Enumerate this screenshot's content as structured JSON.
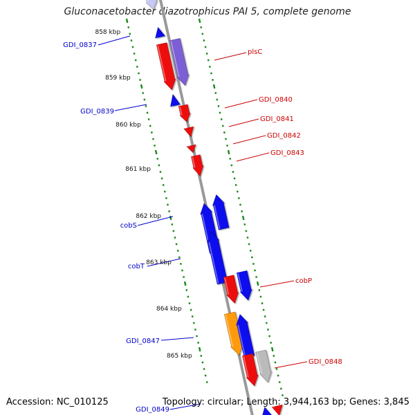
{
  "title": "Gluconacetobacter diazotrophicus PAI 5, complete genome",
  "accession": "Accession: NC_010125",
  "summary": "Topology: circular; Length: 3,944,163 bp; Genes: 3,845",
  "colors": {
    "backbone": "#999999",
    "tick": "#1a8a1a",
    "forward_label": "#cc0000",
    "reverse_label": "#0000cc",
    "red": "#ee1111",
    "blue": "#0b0bee",
    "purple": "#7b5fd6",
    "orange": "#ff9a10",
    "gray": "#bbbbbb",
    "lightblue": "#c6c8f5"
  },
  "scale_labels": [
    "858 kbp",
    "859 kbp",
    "860 kbp",
    "861 kbp",
    "862 kbp",
    "863 kbp",
    "864 kbp",
    "865 kbp"
  ],
  "genes": [
    {
      "name": "",
      "color": "lightblue",
      "side": "inner",
      "dir": "reverse",
      "label": false
    },
    {
      "name": "GDI_0837",
      "color": "blue",
      "side": "inner",
      "dir": "reverse",
      "label": true
    },
    {
      "name": "plsC",
      "color": "red",
      "side": "outer",
      "dir": "forward",
      "label": true
    },
    {
      "name": "",
      "color": "purple",
      "side": "outer",
      "dir": "forward",
      "label": false
    },
    {
      "name": "GDI_0839",
      "color": "blue",
      "side": "inner",
      "dir": "reverse",
      "label": true
    },
    {
      "name": "GDI_0840",
      "color": "red",
      "side": "outer",
      "dir": "forward",
      "label": true
    },
    {
      "name": "GDI_0841",
      "color": "red",
      "side": "outer",
      "dir": "forward",
      "label": true
    },
    {
      "name": "GDI_0842",
      "color": "red",
      "side": "outer",
      "dir": "forward",
      "label": true
    },
    {
      "name": "GDI_0843",
      "color": "red",
      "side": "outer",
      "dir": "forward",
      "label": true
    },
    {
      "name": "cobS",
      "color": "blue",
      "side": "inner",
      "dir": "reverse",
      "label": true
    },
    {
      "name": "",
      "color": "blue",
      "side": "inner",
      "dir": "reverse",
      "label": false
    },
    {
      "name": "cobT",
      "color": "blue",
      "side": "inner",
      "dir": "reverse",
      "label": true
    },
    {
      "name": "cobP",
      "color": "red",
      "side": "outer",
      "dir": "forward",
      "label": true
    },
    {
      "name": "",
      "color": "blue",
      "side": "outer",
      "dir": "forward",
      "label": false
    },
    {
      "name": "GDI_0847",
      "color": "orange",
      "side": "inner",
      "dir": "reverse",
      "label": true
    },
    {
      "name": "",
      "color": "blue",
      "side": "inner",
      "dir": "reverse",
      "label": false
    },
    {
      "name": "GDI_0848",
      "color": "red",
      "side": "outer",
      "dir": "forward",
      "label": true
    },
    {
      "name": "",
      "color": "gray",
      "side": "outer",
      "dir": "forward",
      "label": false
    },
    {
      "name": "GDI_0849",
      "color": "blue",
      "side": "inner",
      "dir": "reverse",
      "label": true
    },
    {
      "name": "",
      "color": "red",
      "side": "outer",
      "dir": "forward",
      "label": false
    }
  ]
}
